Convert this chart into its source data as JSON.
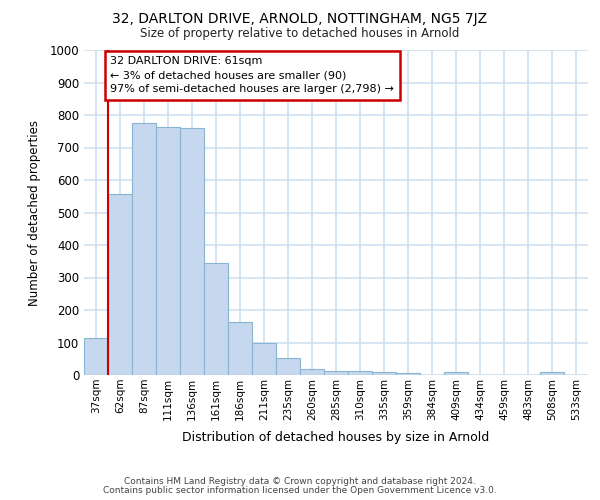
{
  "title_line1": "32, DARLTON DRIVE, ARNOLD, NOTTINGHAM, NG5 7JZ",
  "title_line2": "Size of property relative to detached houses in Arnold",
  "xlabel": "Distribution of detached houses by size in Arnold",
  "ylabel": "Number of detached properties",
  "categories": [
    "37sqm",
    "62sqm",
    "87sqm",
    "111sqm",
    "136sqm",
    "161sqm",
    "186sqm",
    "211sqm",
    "235sqm",
    "260sqm",
    "285sqm",
    "310sqm",
    "335sqm",
    "359sqm",
    "384sqm",
    "409sqm",
    "434sqm",
    "459sqm",
    "483sqm",
    "508sqm",
    "533sqm"
  ],
  "values": [
    113,
    558,
    775,
    762,
    760,
    345,
    163,
    98,
    51,
    20,
    11,
    11,
    10,
    7,
    0,
    10,
    0,
    0,
    0,
    10,
    0
  ],
  "bar_color": "#c5d8ed",
  "bar_edge_color": "#8ab4d4",
  "annotation_text_line1": "32 DARLTON DRIVE: 61sqm",
  "annotation_text_line2": "← 3% of detached houses are smaller (90)",
  "annotation_text_line3": "97% of semi-detached houses are larger (2,798) →",
  "annotation_box_color": "#ffffff",
  "annotation_box_edge_color": "#cc0000",
  "vline_color": "#cc0000",
  "ylim": [
    0,
    1000
  ],
  "yticks": [
    0,
    100,
    200,
    300,
    400,
    500,
    600,
    700,
    800,
    900,
    1000
  ],
  "background_color": "#ffffff",
  "plot_bg_color": "#ffffff",
  "grid_color": "#d0dff0",
  "footer_line1": "Contains HM Land Registry data © Crown copyright and database right 2024.",
  "footer_line2": "Contains public sector information licensed under the Open Government Licence v3.0."
}
